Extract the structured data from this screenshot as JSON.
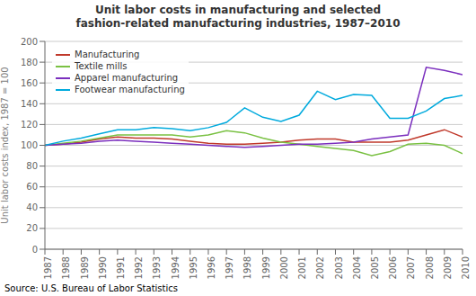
{
  "chart_data": {
    "type": "line",
    "title": "Unit labor costs in manufacturing and selected\nfashion-related manufacturing industries, 1987–2010",
    "y_label": "Unit labor costs index, 1987 = 100",
    "annotations": [
      "Source: U.S. Bureau of Labor Statistics"
    ],
    "x": [
      1987,
      1988,
      1989,
      1990,
      1991,
      1992,
      1993,
      1994,
      1995,
      1996,
      1997,
      1998,
      1999,
      2000,
      2001,
      2002,
      2003,
      2004,
      2005,
      2006,
      2007,
      2008,
      2009,
      2010
    ],
    "xlim": [
      1987,
      2010
    ],
    "xticks": [
      1987,
      1988,
      1989,
      1990,
      1991,
      1992,
      1993,
      1994,
      1995,
      1996,
      1997,
      1998,
      1999,
      2000,
      2001,
      2002,
      2003,
      2004,
      2005,
      2006,
      2007,
      2008,
      2009,
      2010
    ],
    "ylim": [
      0,
      200
    ],
    "yticks": [
      0,
      20,
      40,
      60,
      80,
      100,
      120,
      140,
      160,
      180,
      200
    ],
    "grid": true,
    "legend": "upper left",
    "series": [
      {
        "name": "Manufacturing",
        "color": "#c0392b",
        "values": [
          100,
          101,
          103,
          106,
          108,
          107,
          107,
          106,
          104,
          102,
          101,
          101,
          102,
          103,
          105,
          106,
          106,
          103,
          103,
          103,
          105,
          110,
          115,
          108
        ]
      },
      {
        "name": "Textile mills",
        "color": "#7ac143",
        "values": [
          100,
          102,
          104,
          107,
          110,
          110,
          110,
          110,
          108,
          110,
          114,
          112,
          107,
          103,
          101,
          99,
          97,
          95,
          90,
          94,
          101,
          102,
          100,
          92
        ]
      },
      {
        "name": "Apparel manufacturing",
        "color": "#7b2fbe",
        "values": [
          100,
          101,
          102,
          104,
          105,
          104,
          103,
          102,
          101,
          100,
          99,
          98,
          99,
          100,
          101,
          101,
          102,
          103,
          106,
          108,
          110,
          175,
          172,
          168
        ]
      },
      {
        "name": "Footwear manufacturing",
        "color": "#00aadd",
        "values": [
          100,
          104,
          107,
          111,
          115,
          115,
          117,
          116,
          114,
          117,
          122,
          136,
          127,
          123,
          129,
          152,
          144,
          149,
          148,
          126,
          126,
          133,
          145,
          148
        ]
      }
    ]
  }
}
